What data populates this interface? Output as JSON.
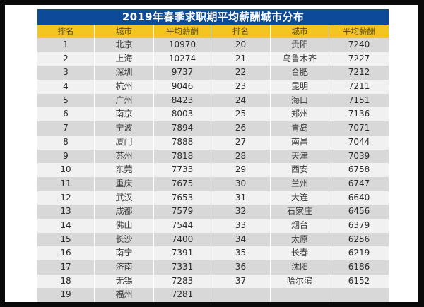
{
  "title": "2019年春季求职期平均薪酬城市分布",
  "colors": {
    "title_bg": "#0d4a98",
    "header_bg": "#f3c521",
    "row_gray": "#d8d8d8",
    "row_light": "#f1f1f1"
  },
  "headers": [
    "排名",
    "城市",
    "平均薪酬",
    "排名",
    "城市",
    "平均薪酬"
  ],
  "rows": [
    {
      "l_rank": "1",
      "l_city": "北京",
      "l_salary": "10970",
      "r_rank": "20",
      "r_city": "贵阳",
      "r_salary": "7240"
    },
    {
      "l_rank": "2",
      "l_city": "上海",
      "l_salary": "10274",
      "r_rank": "21",
      "r_city": "乌鲁木齐",
      "r_salary": "7227"
    },
    {
      "l_rank": "3",
      "l_city": "深圳",
      "l_salary": "9737",
      "r_rank": "22",
      "r_city": "合肥",
      "r_salary": "7212"
    },
    {
      "l_rank": "4",
      "l_city": "杭州",
      "l_salary": "9046",
      "r_rank": "23",
      "r_city": "昆明",
      "r_salary": "7211"
    },
    {
      "l_rank": "5",
      "l_city": "广州",
      "l_salary": "8423",
      "r_rank": "24",
      "r_city": "海口",
      "r_salary": "7151"
    },
    {
      "l_rank": "6",
      "l_city": "南京",
      "l_salary": "8003",
      "r_rank": "25",
      "r_city": "郑州",
      "r_salary": "7136"
    },
    {
      "l_rank": "7",
      "l_city": "宁波",
      "l_salary": "7894",
      "r_rank": "26",
      "r_city": "青岛",
      "r_salary": "7071"
    },
    {
      "l_rank": "8",
      "l_city": "厦门",
      "l_salary": "7888",
      "r_rank": "27",
      "r_city": "南昌",
      "r_salary": "7044"
    },
    {
      "l_rank": "9",
      "l_city": "苏州",
      "l_salary": "7818",
      "r_rank": "28",
      "r_city": "天津",
      "r_salary": "7039"
    },
    {
      "l_rank": "10",
      "l_city": "东莞",
      "l_salary": "7733",
      "r_rank": "29",
      "r_city": "西安",
      "r_salary": "6758"
    },
    {
      "l_rank": "11",
      "l_city": "重庆",
      "l_salary": "7675",
      "r_rank": "30",
      "r_city": "兰州",
      "r_salary": "6747"
    },
    {
      "l_rank": "12",
      "l_city": "武汉",
      "l_salary": "7653",
      "r_rank": "31",
      "r_city": "大连",
      "r_salary": "6640"
    },
    {
      "l_rank": "13",
      "l_city": "成都",
      "l_salary": "7579",
      "r_rank": "32",
      "r_city": "石家庄",
      "r_salary": "6456"
    },
    {
      "l_rank": "14",
      "l_city": "佛山",
      "l_salary": "7544",
      "r_rank": "33",
      "r_city": "烟台",
      "r_salary": "6379"
    },
    {
      "l_rank": "15",
      "l_city": "长沙",
      "l_salary": "7400",
      "r_rank": "34",
      "r_city": "太原",
      "r_salary": "6256"
    },
    {
      "l_rank": "16",
      "l_city": "南宁",
      "l_salary": "7391",
      "r_rank": "35",
      "r_city": "长春",
      "r_salary": "6219"
    },
    {
      "l_rank": "17",
      "l_city": "济南",
      "l_salary": "7331",
      "r_rank": "36",
      "r_city": "沈阳",
      "r_salary": "6186"
    },
    {
      "l_rank": "18",
      "l_city": "无锡",
      "l_salary": "7283",
      "r_rank": "37",
      "r_city": "哈尔滨",
      "r_salary": "6152"
    },
    {
      "l_rank": "19",
      "l_city": "福州",
      "l_salary": "7281",
      "r_rank": "",
      "r_city": "",
      "r_salary": ""
    }
  ]
}
